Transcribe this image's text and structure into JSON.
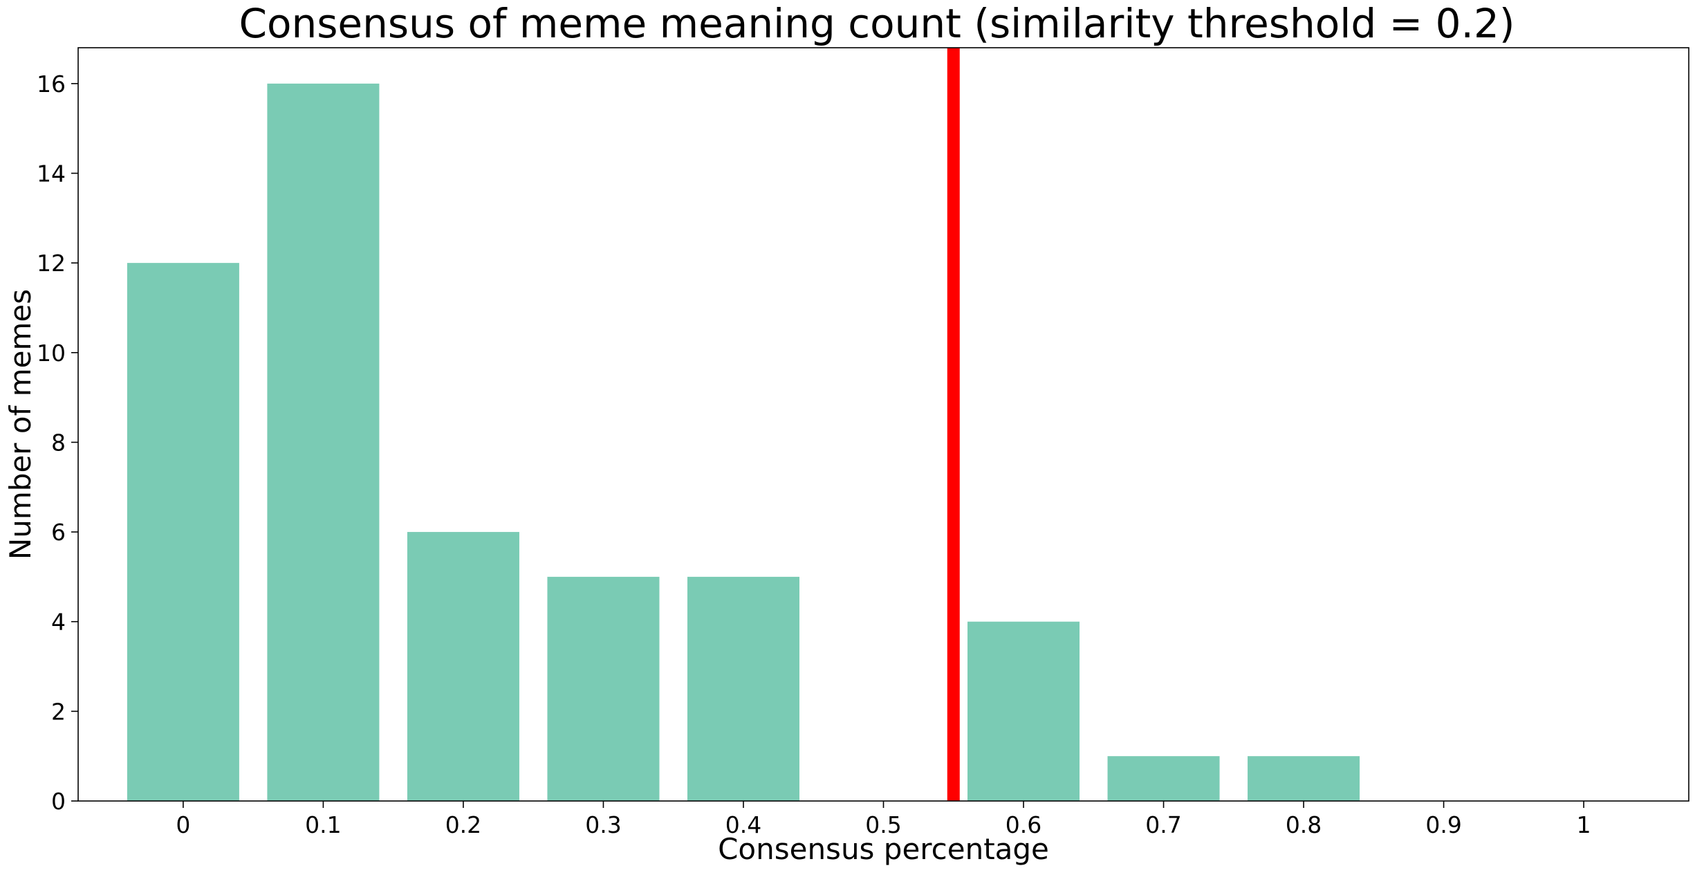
{
  "chart_data": {
    "type": "bar",
    "title": "Consensus of meme meaning count (similarity threshold = 0.2)",
    "xlabel": "Consensus percentage",
    "ylabel": "Number of memes",
    "categories": [
      "0",
      "0.1",
      "0.2",
      "0.3",
      "0.4",
      "0.5",
      "0.6",
      "0.7",
      "0.8",
      "0.9",
      "1"
    ],
    "values": [
      12,
      16,
      6,
      5,
      5,
      0,
      4,
      1,
      1,
      0,
      0
    ],
    "ylim": [
      0,
      16.8
    ],
    "yticks": [
      "0",
      "2",
      "4",
      "6",
      "8",
      "10",
      "12",
      "14",
      "16"
    ],
    "reference_line": {
      "x": 0.55,
      "color": "#ff0000"
    },
    "bar_color": "#7acbb4",
    "grid": false,
    "legend": "none"
  }
}
